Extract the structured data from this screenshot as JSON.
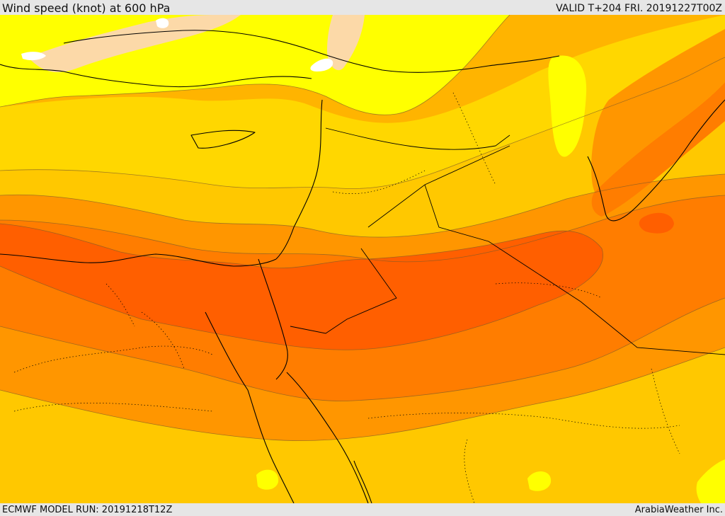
{
  "header": {
    "title": "Wind speed (knot) at 600 hPa",
    "valid": "VALID T+204 FRI. 20191227T00Z"
  },
  "footer": {
    "model_run": "ECMWF MODEL RUN: 20191218T12Z",
    "credit": "ArabiaWeather Inc."
  },
  "map": {
    "colors": {
      "peach": "#fcd9a8",
      "yellow": "#ffff00",
      "light_gold": "#ffd700",
      "gold": "#ffc800",
      "amber": "#ffb400",
      "orange": "#ff9600",
      "dark_orange": "#ff7d00",
      "red_orange": "#ff5f00",
      "water": "#ffffff",
      "coast": "#000000"
    }
  }
}
